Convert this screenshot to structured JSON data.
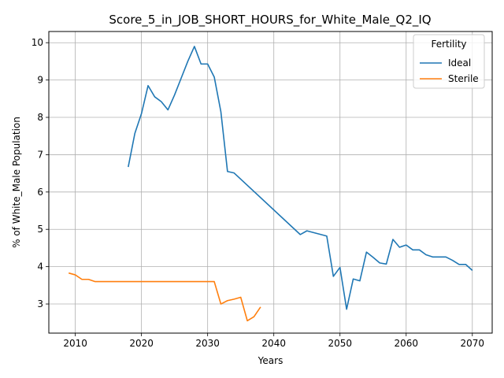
{
  "chart_data": {
    "type": "line",
    "title": "Score_5_in_JOB_SHORT_HOURS_for_White_Male_Q2_IQ",
    "xlabel": "Years",
    "ylabel": "% of White_Male Population",
    "xlim": [
      2006,
      2073
    ],
    "ylim": [
      2.22,
      10.3
    ],
    "xticks": [
      2010,
      2020,
      2030,
      2040,
      2050,
      2060,
      2070
    ],
    "yticks": [
      3,
      4,
      5,
      6,
      7,
      8,
      9,
      10
    ],
    "grid": true,
    "legend": {
      "title": "Fertility",
      "placement": "top-right"
    },
    "colors": {
      "Ideal": "#1f77b4",
      "Sterile": "#ff7f0e"
    },
    "series": [
      {
        "name": "Ideal",
        "x": [
          2018,
          2019,
          2020,
          2021,
          2022,
          2023,
          2024,
          2025,
          2026,
          2027,
          2028,
          2029,
          2030,
          2031,
          2032,
          2033,
          2034,
          2044,
          2045,
          2048,
          2049,
          2050,
          2051,
          2052,
          2053,
          2054,
          2055,
          2056,
          2057,
          2058,
          2059,
          2060,
          2061,
          2062,
          2063,
          2064,
          2065,
          2066,
          2067,
          2068,
          2069,
          2070
        ],
        "values": [
          6.67,
          7.57,
          8.1,
          8.85,
          8.55,
          8.42,
          8.2,
          8.6,
          9.05,
          9.5,
          9.9,
          9.43,
          9.43,
          9.08,
          8.15,
          6.55,
          6.51,
          4.86,
          4.96,
          4.82,
          3.74,
          3.98,
          2.86,
          3.67,
          3.62,
          4.39,
          4.25,
          4.1,
          4.07,
          4.73,
          4.52,
          4.58,
          4.45,
          4.45,
          4.32,
          4.26,
          4.26,
          4.26,
          4.17,
          4.06,
          4.06,
          3.9
        ]
      },
      {
        "name": "Sterile",
        "x": [
          2009,
          2010,
          2011,
          2012,
          2013,
          2014,
          2031,
          2032,
          2033,
          2034,
          2035,
          2036,
          2037,
          2038
        ],
        "values": [
          3.83,
          3.78,
          3.66,
          3.66,
          3.6,
          3.6,
          3.6,
          3.0,
          3.09,
          3.13,
          3.18,
          2.55,
          2.66,
          2.92
        ]
      }
    ]
  }
}
